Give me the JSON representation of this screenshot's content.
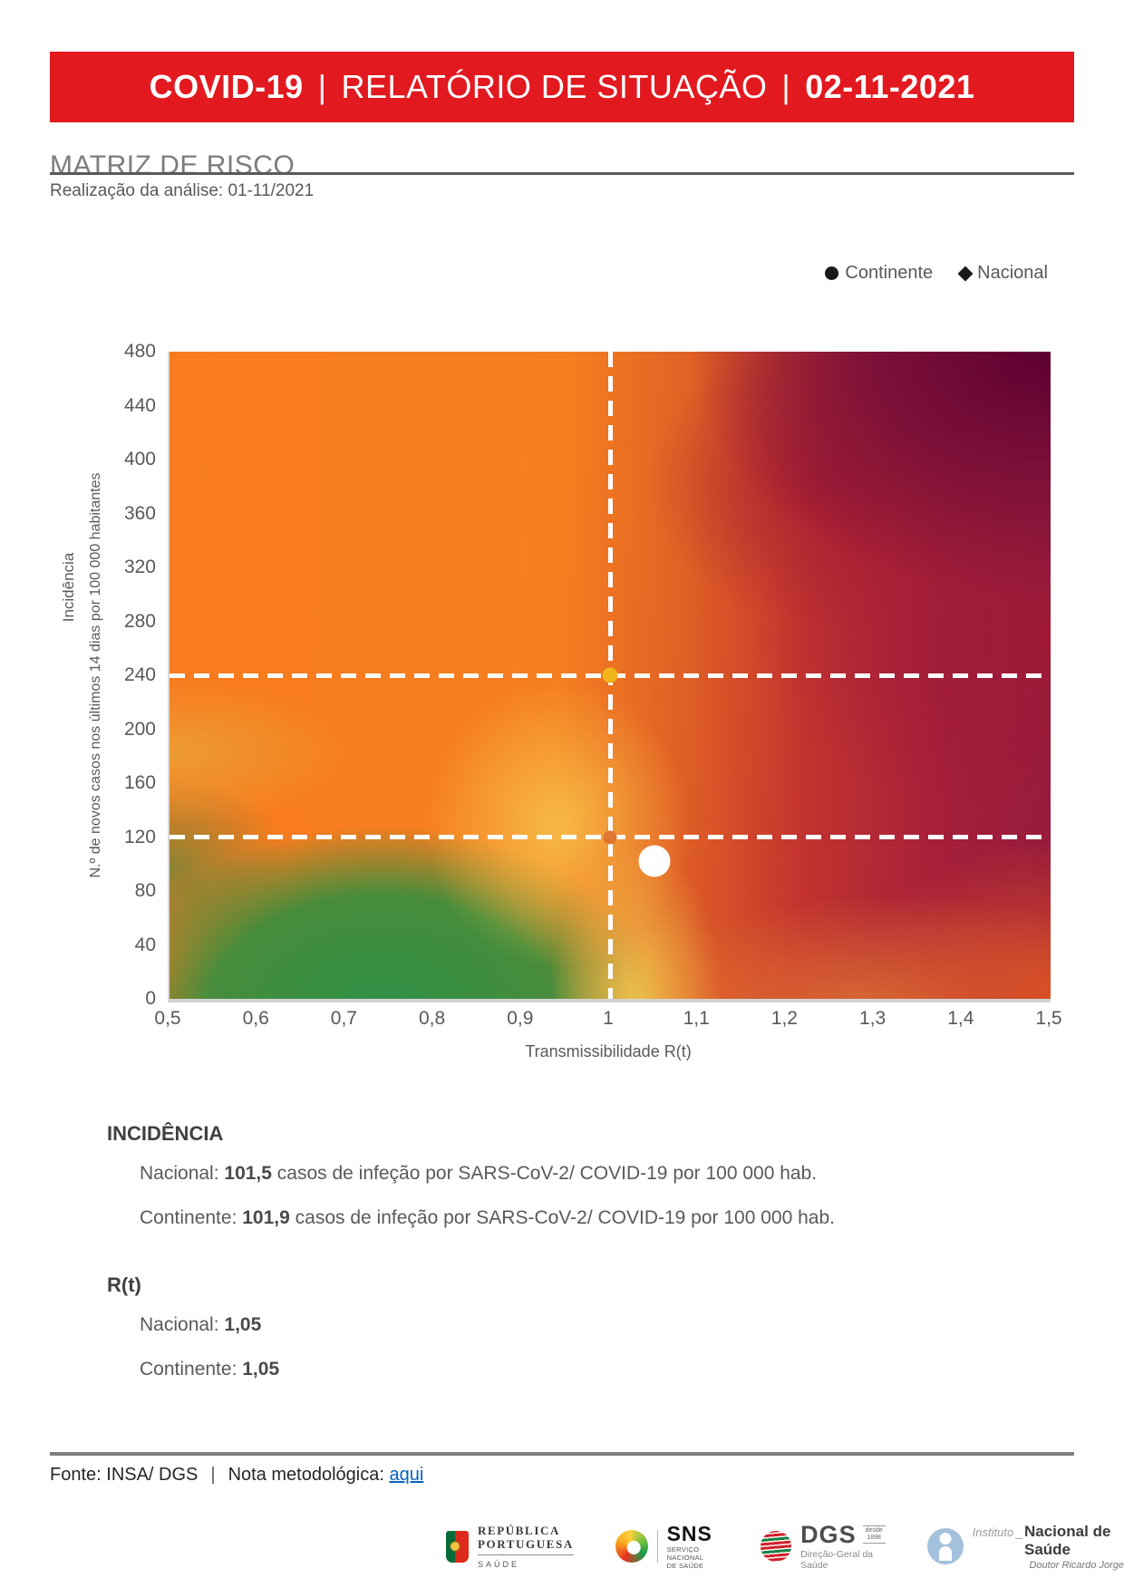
{
  "banner": {
    "covid": "COVID-19",
    "sep": "|",
    "title": "RELATÓRIO DE SITUAÇÃO",
    "date": "02-11-2021",
    "bg_color": "#e2191f"
  },
  "title": "MATRIZ DE RISCO",
  "subtitle": "Realização da análise: 01-11/2021",
  "chart_data": {
    "type": "heatmap",
    "xlabel": "Transmissibilidade R(t)",
    "ylabel_line1": "Incidência",
    "ylabel_line2": "N.º de novos casos nos últimos 14 dias por 100 000 habitantes",
    "xlim": [
      0.5,
      1.5
    ],
    "ylim": [
      0,
      480
    ],
    "x_ticks": [
      "0,5",
      "0,6",
      "0,7",
      "0,8",
      "0,9",
      "1",
      "1,1",
      "1,2",
      "1,3",
      "1,4",
      "1,5"
    ],
    "y_ticks": [
      "480",
      "440",
      "400",
      "360",
      "320",
      "280",
      "240",
      "200",
      "160",
      "120",
      "80",
      "40",
      "0"
    ],
    "threshold_lines": {
      "x": [
        1
      ],
      "y": [
        240,
        120
      ]
    },
    "threshold_markers": [
      {
        "x": 1,
        "y": 240,
        "color": "#f2b41c",
        "size": 17
      },
      {
        "x": 1,
        "y": 120,
        "color": "#e0762e",
        "size": 15
      }
    ],
    "points": [
      {
        "name": "Nacional",
        "marker": "diamond",
        "x": 1.05,
        "y": 101.5,
        "color": "#ffffff"
      },
      {
        "name": "Continente",
        "marker": "circle",
        "x": 1.05,
        "y": 101.9,
        "color": "#ffffff"
      }
    ],
    "legend": [
      {
        "label": "Continente",
        "marker": "circle"
      },
      {
        "label": "Nacional",
        "marker": "diamond"
      }
    ],
    "palette": {
      "top_left": "#f97b1e",
      "top_right": "#5c0031",
      "right_mid": "#9e1a38",
      "bottom_right": "#d85026",
      "bottom_left_green": "#2e9046",
      "yellow_band": "#f6c44a",
      "olive_left": "#858436"
    }
  },
  "incidence_section": {
    "heading": "INCIDÊNCIA",
    "lines": [
      {
        "label": "Nacional: ",
        "value": "101,5",
        "rest": " casos de infeção por SARS-CoV-2/ COVID-19 por 100 000 hab."
      },
      {
        "label": "Continente: ",
        "value": "101,9",
        "rest": " casos de infeção por SARS-CoV-2/ COVID-19 por 100 000 hab."
      }
    ]
  },
  "rt_section": {
    "heading": "R(t)",
    "lines": [
      {
        "label": "Nacional: ",
        "value": "1,05"
      },
      {
        "label": "Continente: ",
        "value": "1,05"
      }
    ]
  },
  "footer": {
    "fonte": "Fonte: INSA/ DGS",
    "separator": "|",
    "nota": "Nota metodológica: ",
    "link": "aqui"
  },
  "logos": {
    "republica": {
      "line1": "REPÚBLICA",
      "line2": "PORTUGUESA",
      "sub": "SAÚDE"
    },
    "sns": {
      "name": "SNS",
      "sub1": "SERVIÇO NACIONAL",
      "sub2": "DE SAÚDE"
    },
    "dgs": {
      "name": "DGS",
      "desde": "desde",
      "year": "1898",
      "sub": "Direção-Geral da Saúde"
    },
    "insa": {
      "prefix": "Instituto",
      "underscore": "_",
      "name": "Nacional de Saúde",
      "sub": "Doutor Ricardo Jorge"
    }
  }
}
